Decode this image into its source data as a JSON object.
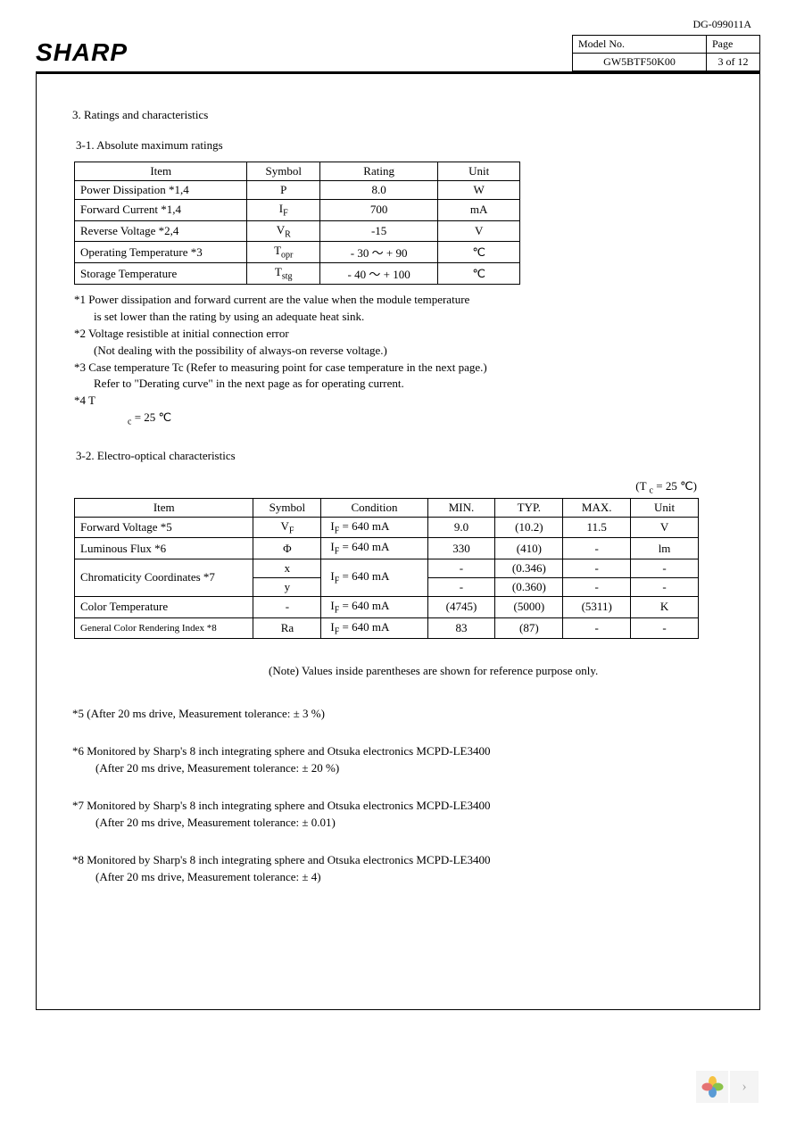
{
  "doc_code": "DG-099011A",
  "logo_text": "SHARP",
  "header": {
    "model_label": "Model No.",
    "page_label": "Page",
    "model_value": "GW5BTF50K00",
    "page_value": "3 of 12"
  },
  "section_title": "3. Ratings and characteristics",
  "sub1_title": "3-1. Absolute maximum ratings",
  "table1": {
    "headers": {
      "item": "Item",
      "symbol": "Symbol",
      "rating": "Rating",
      "unit": "Unit"
    },
    "rows": [
      {
        "item": "Power Dissipation *1,4",
        "symbol": "P",
        "rating": "8.0",
        "unit": "W"
      },
      {
        "item": "Forward Current *1,4",
        "symbol": "I",
        "symbol_sub": "F",
        "rating": "700",
        "unit": "mA"
      },
      {
        "item": "Reverse Voltage *2,4",
        "symbol": "V",
        "symbol_sub": "R",
        "rating": "-15",
        "unit": "V"
      },
      {
        "item": "Operating Temperature *3",
        "symbol": "T",
        "symbol_sub": "opr",
        "rating": "- 30 ～ + 90",
        "unit": "℃"
      },
      {
        "item": "Storage Temperature",
        "symbol": "T",
        "symbol_sub": "stg",
        "rating": "- 40 ～ + 100",
        "unit": "℃"
      }
    ]
  },
  "notes1": {
    "n1a": "*1 Power dissipation and forward current are the value when the module temperature",
    "n1b": "is set lower than the rating by using an adequate heat sink.",
    "n2a": "*2 Voltage resistible at initial connection error",
    "n2b": "(Not dealing with the possibility of always-on reverse voltage.)",
    "n3a": "*3 Case temperature Tc (Refer to measuring point for case temperature in the next page.)",
    "n3b": "Refer to \"Derating curve\" in the next page as for operating current.",
    "n4a": "*4 T",
    "n4b": " = 25 ℃",
    "n4sub": "c"
  },
  "sub2_title": "3-2. Electro-optical characteristics",
  "cond_text": "(T ",
  "cond_sub": "c",
  "cond_text2": " = 25 ℃)",
  "table2": {
    "headers": {
      "item": "Item",
      "symbol": "Symbol",
      "condition": "Condition",
      "min": "MIN.",
      "typ": "TYP.",
      "max": "MAX.",
      "unit": "Unit"
    },
    "rows": [
      {
        "item": "Forward Voltage *5",
        "symbol": "V",
        "symbol_sub": "F",
        "condition": "I",
        "cond_sub": "F",
        "cond2": " = 640 mA",
        "min": "9.0",
        "typ": "(10.2)",
        "max": "11.5",
        "unit": "V"
      },
      {
        "item": "Luminous Flux *6",
        "symbol": "Φ",
        "symbol_sub": "",
        "condition": "I",
        "cond_sub": "F",
        "cond2": " = 640 mA",
        "min": "330",
        "typ": "(410)",
        "max": "-",
        "unit": "lm"
      },
      {
        "item": "Chromaticity Coordinates *7",
        "rowspan": 2,
        "symbol": "x",
        "symbol_sub": "",
        "condition": "I",
        "cond_sub": "F",
        "cond2": " = 640 mA",
        "cond_rowspan": 2,
        "min": "-",
        "typ": "(0.346)",
        "max": "-",
        "unit": "-"
      },
      {
        "item": "",
        "symbol": "y",
        "symbol_sub": "",
        "min": "-",
        "typ": "(0.360)",
        "max": "-",
        "unit": "-"
      },
      {
        "item": "Color Temperature",
        "symbol": "-",
        "symbol_sub": "",
        "condition": "I",
        "cond_sub": "F",
        "cond2": " = 640 mA",
        "min": "(4745)",
        "typ": "(5000)",
        "max": "(5311)",
        "unit": "K"
      },
      {
        "item": "General Color Rendering Index        *8",
        "small": true,
        "symbol": "Ra",
        "symbol_sub": "",
        "condition": "I",
        "cond_sub": "F",
        "cond2": " = 640 mA",
        "min": "83",
        "typ": "(87)",
        "max": "-",
        "unit": "-"
      }
    ]
  },
  "note_ref": "(Note) Values inside parentheses are shown for reference purpose only.",
  "footnotes": {
    "n5": "*5 (After 20 ms drive, Measurement tolerance: ± 3 %)",
    "n6a": "*6 Monitored by Sharp's 8 inch integrating sphere and Otsuka electronics MCPD-LE3400",
    "n6b": "(After 20 ms drive, Measurement tolerance: ± 20 %)",
    "n7a": "*7 Monitored by Sharp's 8 inch integrating sphere and Otsuka electronics MCPD-LE3400",
    "n7b": "(After 20 ms drive, Measurement tolerance: ± 0.01)",
    "n8a": "*8 Monitored by Sharp's 8 inch integrating sphere and Otsuka electronics MCPD-LE3400",
    "n8b": "(After 20 ms drive, Measurement tolerance: ± 4)"
  },
  "nav": {
    "arrow": "›"
  },
  "colors": {
    "petal1": "#f5c242",
    "petal2": "#8bc34a",
    "petal3": "#5a9bd5",
    "petal4": "#e57373"
  }
}
